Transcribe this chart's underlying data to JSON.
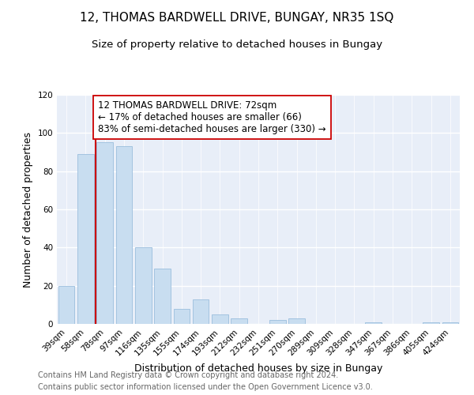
{
  "title": "12, THOMAS BARDWELL DRIVE, BUNGAY, NR35 1SQ",
  "subtitle": "Size of property relative to detached houses in Bungay",
  "xlabel": "Distribution of detached houses by size in Bungay",
  "ylabel": "Number of detached properties",
  "bar_color": "#c8ddf0",
  "bar_edge_color": "#9bbedd",
  "categories": [
    "39sqm",
    "58sqm",
    "78sqm",
    "97sqm",
    "116sqm",
    "135sqm",
    "155sqm",
    "174sqm",
    "193sqm",
    "212sqm",
    "232sqm",
    "251sqm",
    "270sqm",
    "289sqm",
    "309sqm",
    "328sqm",
    "347sqm",
    "367sqm",
    "386sqm",
    "405sqm",
    "424sqm"
  ],
  "values": [
    20,
    89,
    95,
    93,
    40,
    29,
    8,
    13,
    5,
    3,
    0,
    2,
    3,
    0,
    0,
    0,
    1,
    0,
    0,
    1,
    1
  ],
  "ylim": [
    0,
    120
  ],
  "yticks": [
    0,
    20,
    40,
    60,
    80,
    100,
    120
  ],
  "vline_color": "#cc0000",
  "annotation_text": "12 THOMAS BARDWELL DRIVE: 72sqm\n← 17% of detached houses are smaller (66)\n83% of semi-detached houses are larger (330) →",
  "annotation_box_color": "#ffffff",
  "annotation_box_edge": "#cc0000",
  "footer_line1": "Contains HM Land Registry data © Crown copyright and database right 2024.",
  "footer_line2": "Contains public sector information licensed under the Open Government Licence v3.0.",
  "fig_bg_color": "#ffffff",
  "plot_bg_color": "#e8eef8",
  "grid_color": "#ffffff",
  "title_fontsize": 11,
  "subtitle_fontsize": 9.5,
  "axis_label_fontsize": 9,
  "tick_fontsize": 7.5,
  "annotation_fontsize": 8.5,
  "footer_fontsize": 7
}
